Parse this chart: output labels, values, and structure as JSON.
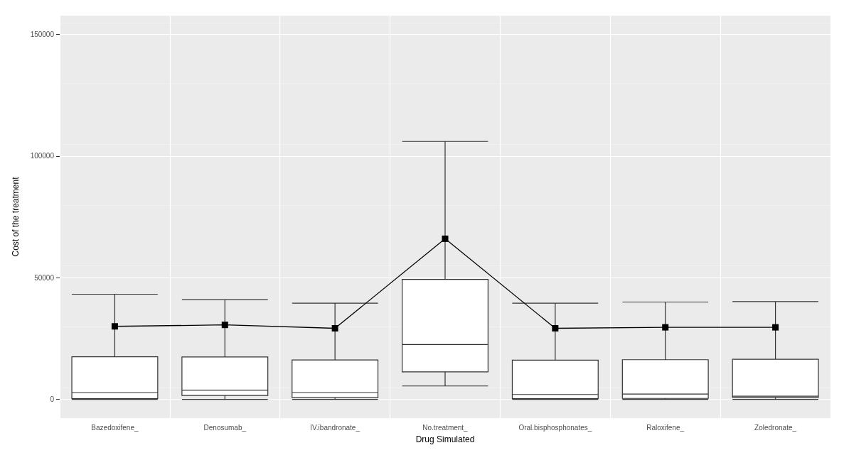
{
  "chart_data": {
    "type": "box",
    "xlabel": "Drug Simulated",
    "ylabel": "Cost of the treatment",
    "categories": [
      "Bazedoxifene_",
      "Denosumab_",
      "IV.ibandronate_",
      "No.treatment_",
      "Oral.bisphosphonates_",
      "Raloxifene_",
      "Zoledronate_"
    ],
    "boxes": [
      {
        "low": 0,
        "q1": 300,
        "median": 2800,
        "q3": 17500,
        "high": 43200
      },
      {
        "low": 0,
        "q1": 1600,
        "median": 3800,
        "q3": 17400,
        "high": 41000
      },
      {
        "low": 0,
        "q1": 700,
        "median": 2800,
        "q3": 16200,
        "high": 39500
      },
      {
        "low": 5500,
        "q1": 11300,
        "median": 22500,
        "q3": 49300,
        "high": 106000
      },
      {
        "low": 0,
        "q1": 300,
        "median": 2000,
        "q3": 16100,
        "high": 39500
      },
      {
        "low": 0,
        "q1": 400,
        "median": 2200,
        "q3": 16300,
        "high": 40000
      },
      {
        "low": 0,
        "q1": 800,
        "median": 1300,
        "q3": 16500,
        "high": 40200
      }
    ],
    "series": [
      {
        "type": "line",
        "color": "#000000",
        "marker": "square",
        "values": [
          30000,
          30600,
          29200,
          66000,
          29200,
          29600,
          29600
        ]
      }
    ],
    "ylim": [
      -7700,
      157700
    ],
    "yticks": [
      0,
      50000,
      100000,
      150000
    ],
    "grid": true
  }
}
